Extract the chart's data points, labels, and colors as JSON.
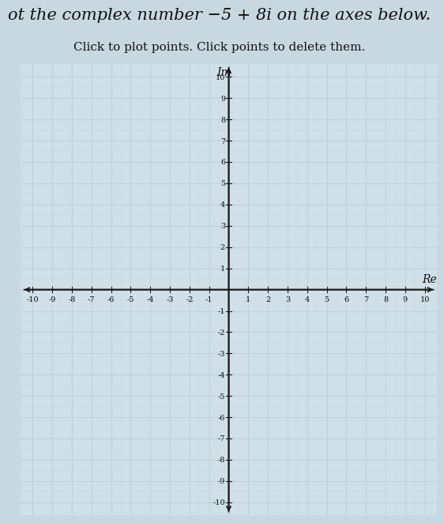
{
  "title_line1": "ot the complex number −5 + 8i on the axes below.",
  "subtitle": "Click to plot points. Click points to delete them.",
  "xlabel": "Re",
  "ylabel": "Im",
  "xlim": [
    -10,
    10
  ],
  "ylim": [
    -10,
    10
  ],
  "xticks": [
    -10,
    -9,
    -8,
    -7,
    -6,
    -5,
    -4,
    -3,
    -2,
    -1,
    1,
    2,
    3,
    4,
    5,
    6,
    7,
    8,
    9,
    10
  ],
  "yticks": [
    -10,
    -9,
    -8,
    -7,
    -6,
    -5,
    -4,
    -3,
    -2,
    -1,
    1,
    2,
    3,
    4,
    5,
    6,
    7,
    8,
    9,
    10
  ],
  "grid_major_color": "#b8cdd8",
  "grid_minor_color": "#cddde8",
  "grid_pink_color": "#e8c8c8",
  "bg_color": "#c8d8e0",
  "ax_bg_color": "#d0e0e8",
  "spine_color": "#1a1a1a",
  "tick_label_fontsize": 7,
  "axis_label_fontsize": 10,
  "title_fontsize": 15,
  "subtitle_fontsize": 11,
  "fig_bg_color": "#c8d8e0"
}
